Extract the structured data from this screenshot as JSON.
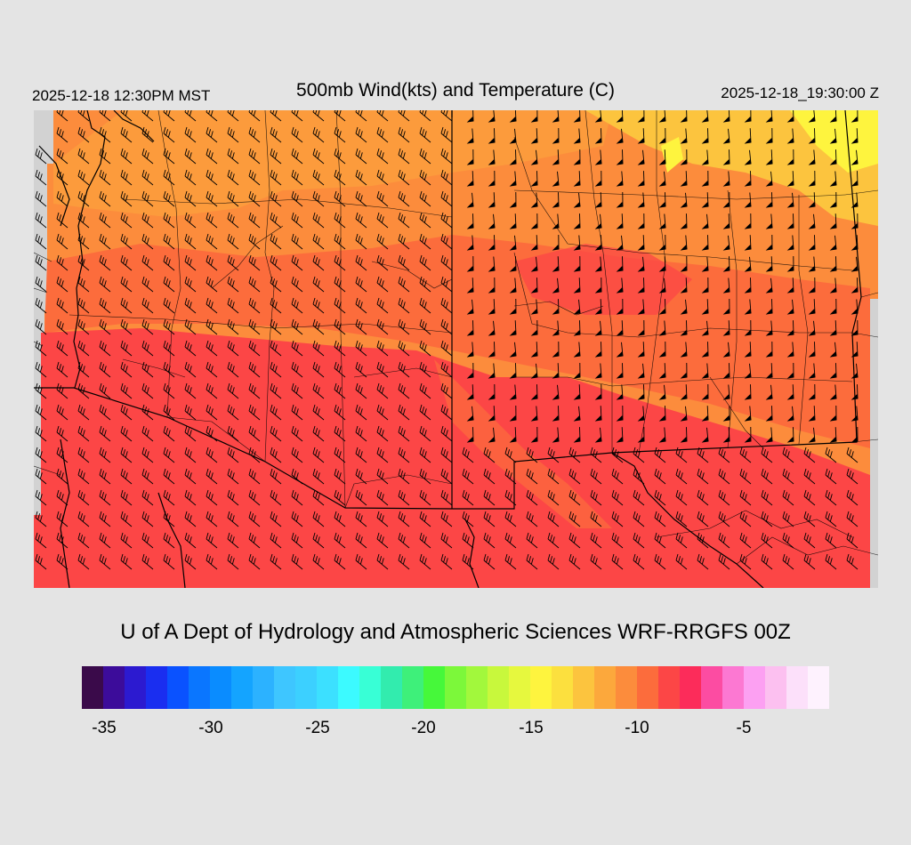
{
  "header": {
    "title": "500mb Wind(kts) and Temperature (C)",
    "valid_local": "2025-12-18 12:30PM MST",
    "valid_utc": "2025-12-18_19:30:00 Z"
  },
  "credit": "U of A Dept of Hydrology and Atmospheric Sciences WRF-RRGFS 00Z",
  "legend": {
    "colors": [
      "#3a0a4a",
      "#3c0c9a",
      "#2c1ad0",
      "#1a2ef0",
      "#0a52ff",
      "#0a76ff",
      "#0a8cff",
      "#14a4ff",
      "#2cb2ff",
      "#3ec6ff",
      "#3cd0ff",
      "#3ce0ff",
      "#3cfaff",
      "#38ffd6",
      "#32ecae",
      "#3ef07a",
      "#46f83a",
      "#7cf83a",
      "#a2f83c",
      "#c8f83c",
      "#e6f83e",
      "#fef43e",
      "#fce03e",
      "#fcc43e",
      "#fca83c",
      "#fc8c3c",
      "#fc6c3c",
      "#fc4646",
      "#fc2c5a",
      "#fc4ca2",
      "#fc78d2",
      "#fca0f2",
      "#fcc0f0",
      "#fce0fa",
      "#fef2fe"
    ],
    "tick_labels": [
      "-35",
      "-30",
      "-25",
      "-20",
      "-15",
      "-10",
      "-5"
    ]
  },
  "map": {
    "field_colors": {
      "cold_red": "#fc4646",
      "mid_orange": "#fc6c3c",
      "orange": "#fc8c3c",
      "light_orange": "#fca83c",
      "gold": "#fcc43e",
      "yellow": "#fef43e"
    },
    "barb_color": "#000000",
    "border_color": "#000000"
  }
}
